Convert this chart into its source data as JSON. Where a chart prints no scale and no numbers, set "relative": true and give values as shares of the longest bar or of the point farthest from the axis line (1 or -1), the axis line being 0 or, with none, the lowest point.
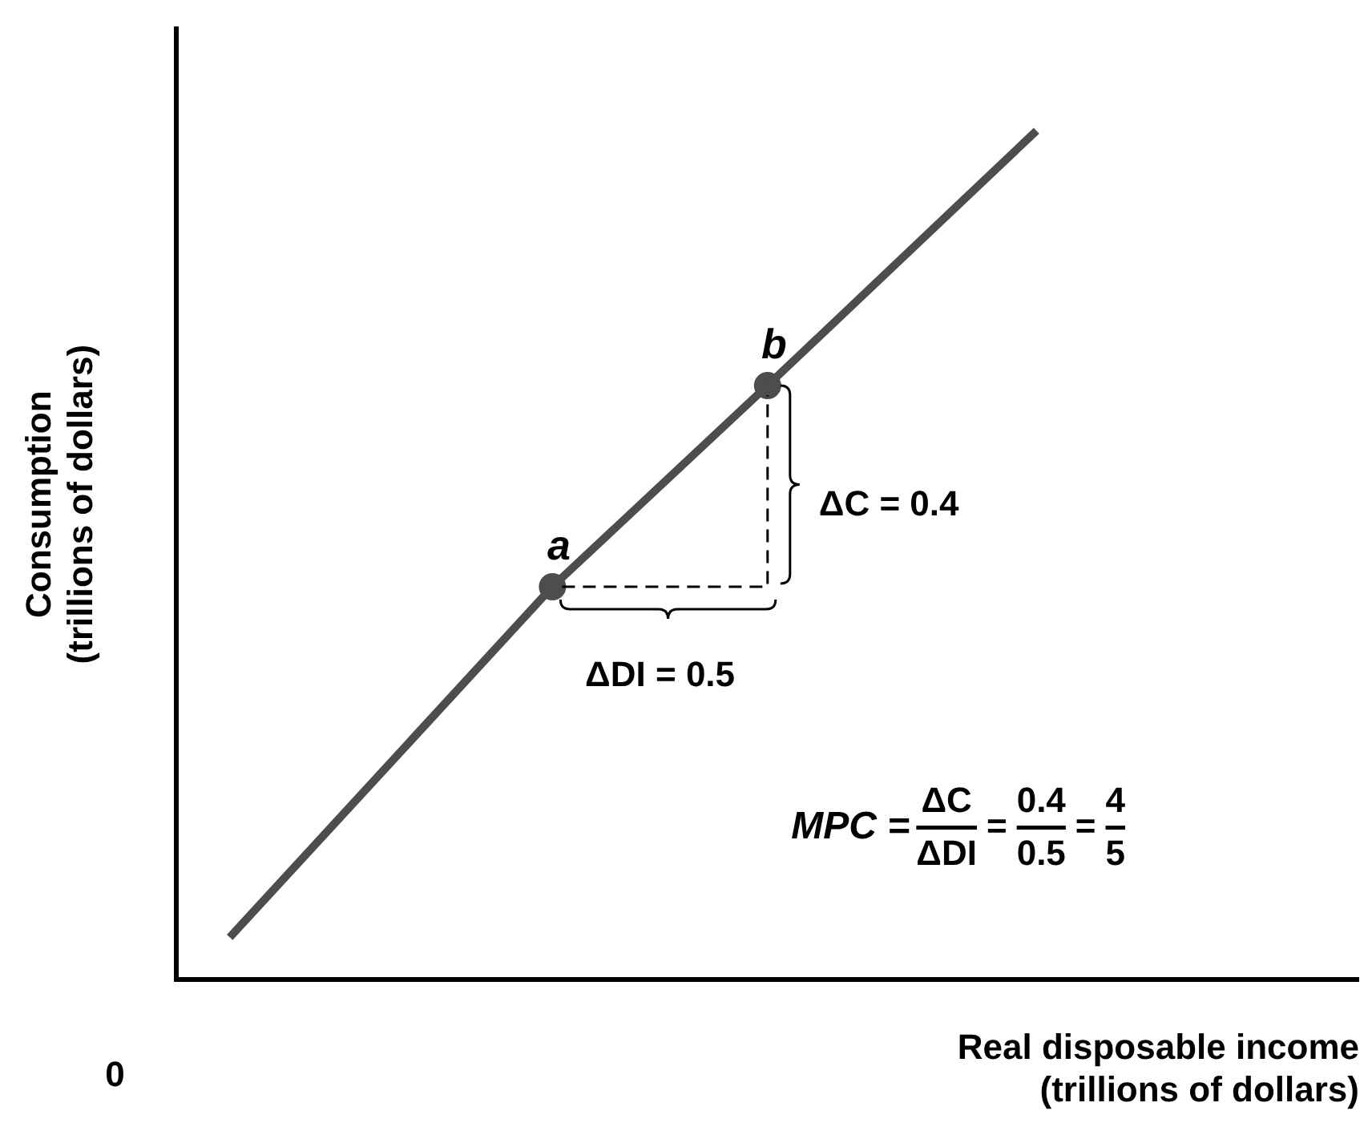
{
  "chart_data": {
    "type": "line",
    "relative": true,
    "xlabel": "Real disposable income\n(trillions of dollars)",
    "ylabel": "Consumption\n(trillions of dollars)",
    "categories": [
      null,
      null,
      null,
      null,
      null,
      null,
      null,
      null,
      null,
      null,
      null,
      null,
      null,
      null,
      null,
      null,
      null,
      null,
      null,
      null,
      null,
      null,
      null
    ],
    "series": [
      {
        "color": "#4d4d4d",
        "values": [
          null,
          0.05,
          null,
          null,
          null,
          null,
          null,
          0.463,
          null,
          null,
          null,
          0.7,
          null,
          null,
          null,
          null,
          1,
          null,
          null,
          null,
          null,
          null,
          null
        ],
        "marker": "circle",
        "line_style": "solid"
      }
    ],
    "annotations": [
      "0",
      "a",
      "b",
      "ΔC = 0.4",
      "ΔDI = 0.5",
      "MPC =",
      "ΔC",
      "ΔDI",
      "=",
      "0.4",
      "0.5",
      "=",
      "4",
      "5"
    ],
    "grid": false,
    "legend": false
  }
}
